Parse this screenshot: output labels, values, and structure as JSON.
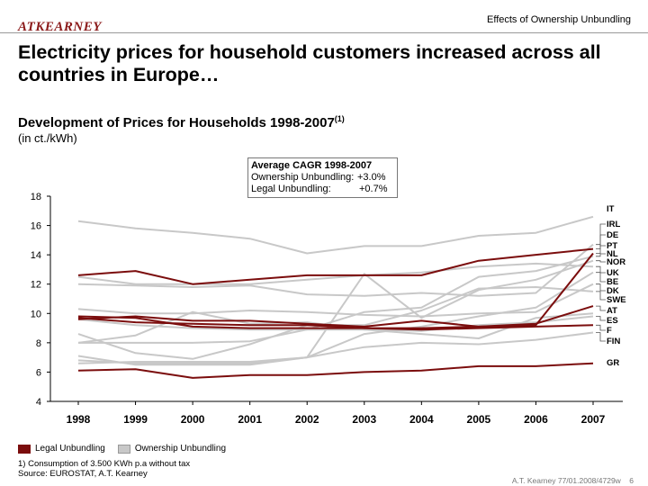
{
  "header": {
    "logo": "ATKEARNEY",
    "title": "Effects of Ownership Unbundling"
  },
  "headline": "Electricity prices for household customers increased across all countries in Europe…",
  "subtitle": "Development of Prices for Households 1998-2007",
  "subtitle_footnote_ref": "(1)",
  "units": "(in ct./kWh)",
  "cagr_box": {
    "title": "Average CAGR 1998-2007",
    "rows": [
      {
        "label": "Ownership Unbundling:",
        "value": "+3.0%"
      },
      {
        "label": "Legal Unbundling:",
        "value": "+0.7%"
      }
    ]
  },
  "legend": {
    "legal_label": "Legal Unbundling",
    "ownership_label": "Ownership Unbundling"
  },
  "footnote": {
    "note": "1) Consumption of 3.500 KWh p.a without tax",
    "source": "Source:    EUROSTAT, A.T. Kearney"
  },
  "footer": {
    "ref": "A.T. Kearney 77/01.2008/4729w",
    "page": "6"
  },
  "colors": {
    "legal": "#7b0d0d",
    "ownership": "#c8c8c8",
    "axis": "#000000"
  },
  "chart_data": {
    "type": "line",
    "title": "",
    "xlabel": "",
    "ylabel": "",
    "x": [
      "1998",
      "1999",
      "2000",
      "2001",
      "2002",
      "2003",
      "2004",
      "2005",
      "2006",
      "2007"
    ],
    "ylim": [
      4,
      18
    ],
    "yticks": [
      4,
      6,
      8,
      10,
      12,
      14,
      16,
      18
    ],
    "grid": false,
    "legend_position": "bottom-left",
    "series": [
      {
        "name": "IT",
        "group": "ownership",
        "values": [
          16.3,
          15.8,
          15.5,
          15.1,
          14.1,
          14.6,
          14.6,
          15.3,
          15.5,
          16.6
        ]
      },
      {
        "name": "IRL",
        "group": "legal",
        "values": [
          12.6,
          12.9,
          12.0,
          12.3,
          12.6,
          12.6,
          12.6,
          13.6,
          14.0,
          14.4
        ]
      },
      {
        "name": "DE",
        "group": "legal",
        "values": [
          9.6,
          9.8,
          9.5,
          9.5,
          9.3,
          9.1,
          9.5,
          9.1,
          9.2,
          14.1
        ]
      },
      {
        "name": "PT",
        "group": "ownership",
        "values": [
          12.0,
          11.9,
          11.8,
          11.9,
          11.3,
          11.2,
          11.4,
          11.2,
          11.4,
          14.7
        ]
      },
      {
        "name": "NL",
        "group": "ownership",
        "values": [
          8.0,
          8.0,
          8.0,
          8.1,
          8.9,
          10.1,
          10.4,
          12.5,
          12.9,
          13.9
        ]
      },
      {
        "name": "NOR",
        "group": "ownership",
        "values": [
          6.8,
          6.6,
          6.6,
          6.6,
          7.0,
          12.7,
          9.7,
          11.6,
          12.3,
          13.6
        ]
      },
      {
        "name": "UK",
        "group": "ownership",
        "values": [
          7.1,
          6.5,
          6.5,
          6.5,
          7.0,
          8.6,
          9.1,
          9.8,
          10.4,
          12.8
        ]
      },
      {
        "name": "BE",
        "group": "ownership",
        "values": [
          12.5,
          12.0,
          12.0,
          12.0,
          12.3,
          12.6,
          12.8,
          13.2,
          13.4,
          13.2
        ]
      },
      {
        "name": "DK",
        "group": "ownership",
        "values": [
          10.3,
          10.0,
          10.0,
          10.2,
          10.1,
          9.9,
          9.8,
          10.0,
          10.1,
          12.0
        ]
      },
      {
        "name": "SWE",
        "group": "ownership",
        "values": [
          8.6,
          7.3,
          6.9,
          7.9,
          9.2,
          9.2,
          10.2,
          11.7,
          11.8,
          11.5
        ]
      },
      {
        "name": "AT",
        "group": "legal",
        "values": [
          9.8,
          9.7,
          9.1,
          9.0,
          9.0,
          9.0,
          9.0,
          9.1,
          9.3,
          10.5
        ]
      },
      {
        "name": "ES",
        "group": "ownership",
        "values": [
          9.6,
          9.2,
          9.0,
          8.9,
          8.9,
          8.9,
          8.8,
          9.2,
          9.4,
          9.8
        ]
      },
      {
        "name": "F",
        "group": "legal",
        "values": [
          9.7,
          9.4,
          9.3,
          9.2,
          9.2,
          9.0,
          8.9,
          9.0,
          9.1,
          9.2
        ]
      },
      {
        "name": "FIN",
        "group": "ownership",
        "values": [
          6.6,
          6.7,
          6.7,
          6.7,
          7.0,
          7.7,
          8.0,
          7.9,
          8.2,
          8.7
        ]
      },
      {
        "name": "GR",
        "group": "legal",
        "values": [
          6.1,
          6.2,
          5.6,
          5.8,
          5.8,
          6.0,
          6.1,
          6.4,
          6.4,
          6.6
        ]
      },
      {
        "name": "",
        "group": "ownership",
        "values": [
          8.0,
          8.5,
          10.1,
          9.3,
          9.4,
          8.9,
          8.6,
          8.3,
          9.7,
          10.0
        ]
      }
    ]
  }
}
